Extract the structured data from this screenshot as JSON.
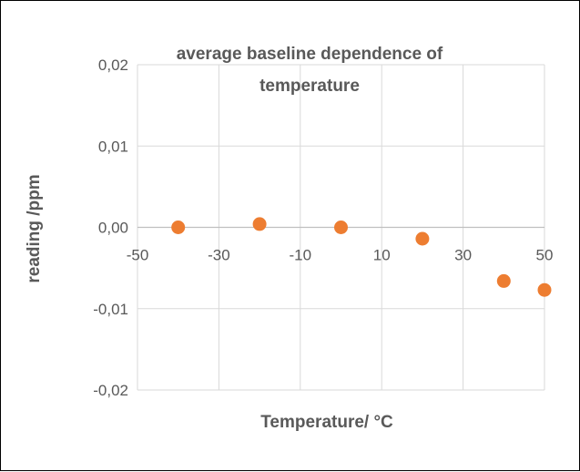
{
  "chart_data": {
    "type": "scatter",
    "title_lines": [
      "average baseline dependence of",
      "temperature"
    ],
    "xlabel": "Temperature/ °C",
    "ylabel": "reading /ppm",
    "xlim": [
      -50,
      50
    ],
    "ylim": [
      -0.02,
      0.02
    ],
    "x_ticks": [
      -50,
      -30,
      -10,
      10,
      30,
      50
    ],
    "x_tick_labels": [
      "-50",
      "-30",
      "-10",
      "10",
      "30",
      "50"
    ],
    "y_ticks": [
      0.02,
      0.01,
      0.0,
      -0.01,
      -0.02
    ],
    "y_tick_labels": [
      "0,02",
      "0,01",
      "0,00",
      "-0,01",
      "-0,02"
    ],
    "grid": true,
    "legend": "none",
    "marker_color": "#ED7D31",
    "series": [
      {
        "x": [
          -40,
          -20,
          0,
          20,
          40,
          50
        ],
        "y": [
          0.0,
          0.0004,
          0.0,
          -0.0014,
          -0.0066,
          -0.0077
        ]
      }
    ]
  }
}
